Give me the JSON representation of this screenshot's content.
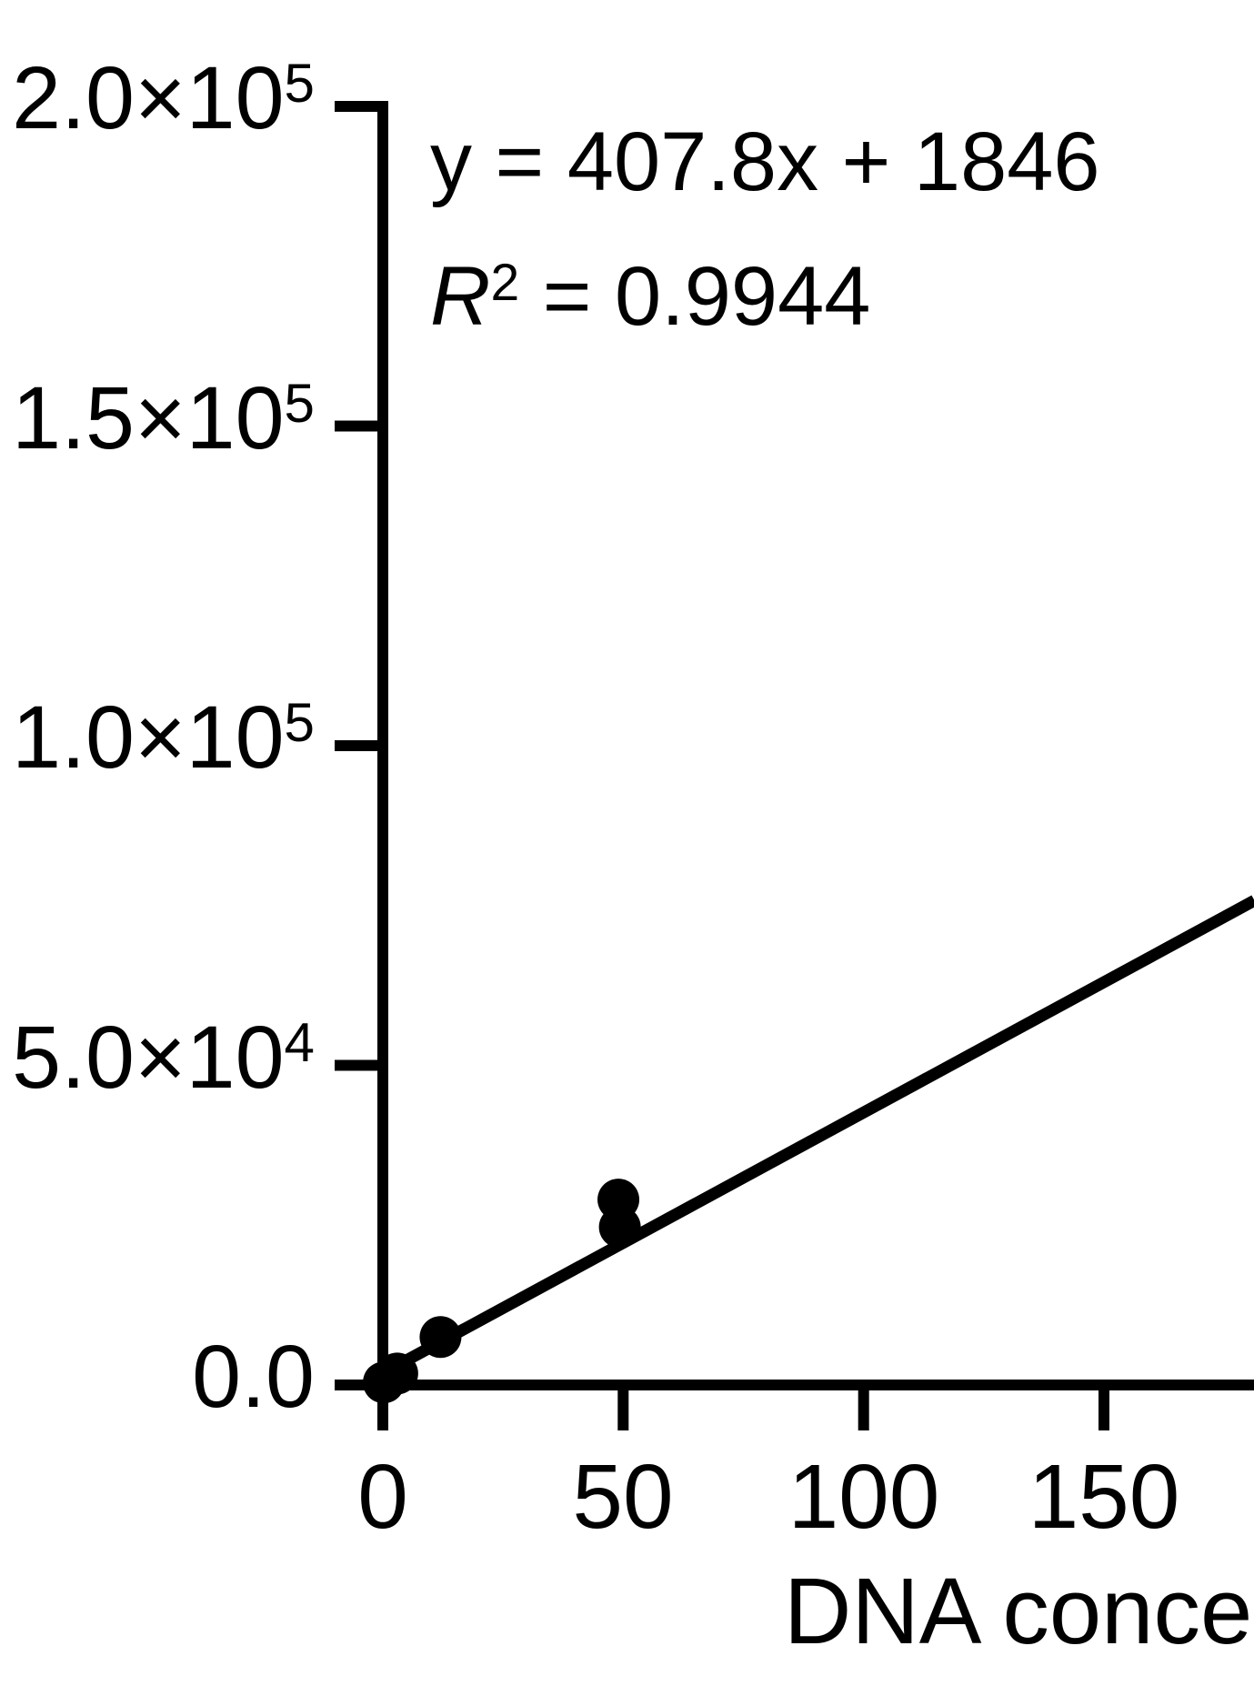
{
  "chart_data": {
    "type": "scatter",
    "title": "",
    "xlabel": "DNA conce",
    "ylabel": "",
    "grid": false,
    "xlim": [
      0,
      181.3
    ],
    "ylim": [
      0,
      200000
    ],
    "colors": {
      "foreground": "#000000",
      "background": "#ffffff"
    },
    "x_ticks": [
      {
        "value": 0,
        "label": "0"
      },
      {
        "value": 50,
        "label": "50"
      },
      {
        "value": 100,
        "label": "100"
      },
      {
        "value": 150,
        "label": "150"
      }
    ],
    "y_ticks": [
      {
        "value": 200000,
        "label": "2.0×10",
        "sup": "5"
      },
      {
        "value": 150000,
        "label": "1.5×10",
        "sup": "5"
      },
      {
        "value": 100000,
        "label": "1.0×10",
        "sup": "5"
      },
      {
        "value": 50000,
        "label": "5.0×10",
        "sup": "4"
      },
      {
        "value": 0,
        "label": "0.0",
        "sup": ""
      }
    ],
    "points": [
      {
        "x": 0.2,
        "y": 400
      },
      {
        "x": 3,
        "y": 1800
      },
      {
        "x": 12,
        "y": 7500
      },
      {
        "x": 49,
        "y": 29000
      },
      {
        "x": 49.3,
        "y": 24700
      }
    ],
    "fit_line": {
      "slope": 407.8,
      "intercept": 1846,
      "x_start": 0,
      "x_end": 181.3
    },
    "marker_radius_px": 23
  },
  "annotation": {
    "line1": "y = 407.8x + 1846",
    "line2_var": "R",
    "line2_exp": "2",
    "line2_rest": " = 0.9944"
  }
}
